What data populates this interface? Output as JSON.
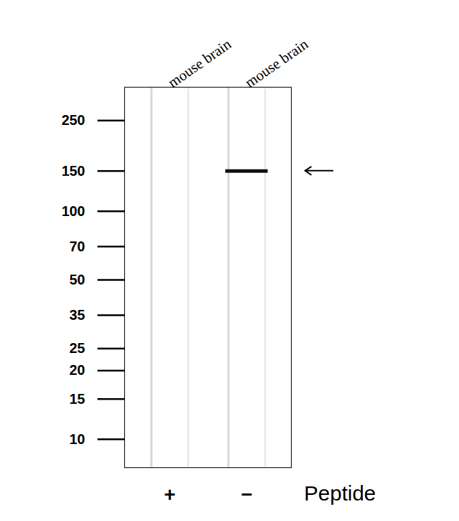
{
  "chart_data": {
    "type": "blot",
    "categories": [
      "mouse brain",
      "mouse brain"
    ],
    "peptide_title": "Peptide",
    "peptide": [
      "+",
      "−"
    ],
    "log": "y",
    "ylim": [
      7.5,
      350
    ],
    "yticks": [
      250,
      150,
      100,
      70,
      50,
      35,
      25,
      20,
      15,
      10
    ],
    "bands": [
      {
        "lane": 1,
        "value": 150
      }
    ],
    "arrow_value": 150,
    "color": "#111111"
  }
}
